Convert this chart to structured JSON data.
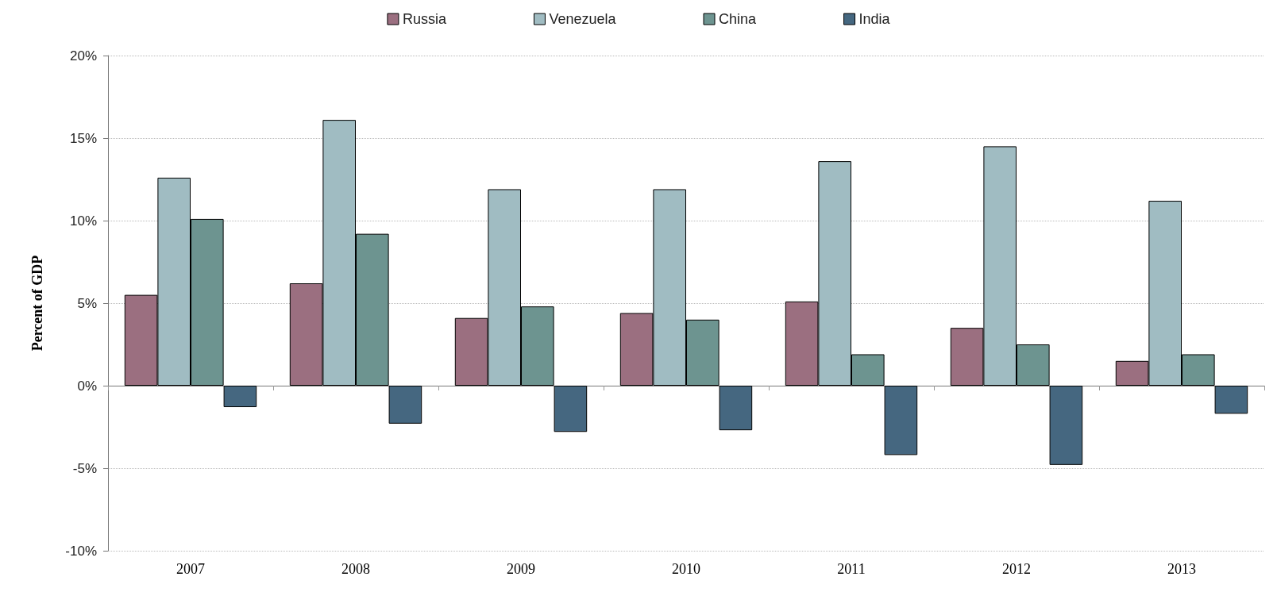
{
  "chart_data": {
    "type": "bar",
    "ylabel": "Percent of GDP",
    "categories": [
      "2007",
      "2008",
      "2009",
      "2010",
      "2011",
      "2012",
      "2013"
    ],
    "series": [
      {
        "name": "Russia",
        "color": "#9b6f80",
        "values": [
          5.5,
          6.2,
          4.1,
          4.4,
          5.1,
          3.5,
          1.5
        ]
      },
      {
        "name": "Venezuela",
        "color": "#a0bcc2",
        "values": [
          12.6,
          16.1,
          11.9,
          11.9,
          13.6,
          14.5,
          11.2
        ]
      },
      {
        "name": "China",
        "color": "#6d9490",
        "values": [
          10.1,
          9.2,
          4.8,
          4.0,
          1.9,
          2.5,
          1.9
        ]
      },
      {
        "name": "India",
        "color": "#456780",
        "values": [
          -1.3,
          -2.3,
          -2.8,
          -2.7,
          -4.2,
          -4.8,
          -1.7
        ]
      }
    ],
    "ylim": [
      -10,
      20
    ],
    "yticks": [
      {
        "value": -10,
        "label": "-10%"
      },
      {
        "value": -5,
        "label": "-5%"
      },
      {
        "value": 0,
        "label": "0%"
      },
      {
        "value": 5,
        "label": "5%"
      },
      {
        "value": 10,
        "label": "10%"
      },
      {
        "value": 15,
        "label": "15%"
      },
      {
        "value": 20,
        "label": "20%"
      }
    ],
    "grid": "y",
    "legend": "top"
  }
}
